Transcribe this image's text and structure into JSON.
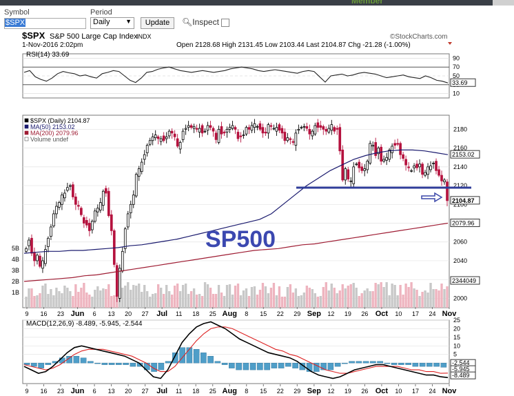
{
  "header": {
    "member_text": "Member",
    "symbol_label": "Symbol",
    "symbol_value": "$SPX",
    "period_label": "Period",
    "period_value": "Daily",
    "update_label": "Update",
    "inspect_label": "Inspect"
  },
  "chart_info": {
    "ticker": "$SPX",
    "name": "S&P 500 Large Cap Index",
    "exchange": "INDX",
    "datetime": "1-Nov-2016 2:02pm",
    "source": "©StockCharts.com",
    "ohlc_text": "Open 2128.68  High 2131.45  Low 2103.44  Last 2104.87  Chg -21.28 (-1.00%)",
    "annotation": "SP500"
  },
  "chart_data": [
    {
      "type": "line",
      "title": "RSI(14) 33.69",
      "ylim": [
        0,
        100
      ],
      "ticks": [
        90,
        70,
        50,
        30,
        10
      ],
      "last_value_label": "33.69",
      "values": [
        58,
        62,
        48,
        42,
        38,
        45,
        55,
        60,
        57,
        55,
        50,
        52,
        48,
        45,
        55,
        58,
        62,
        60,
        50,
        40,
        35,
        45,
        58,
        60,
        65,
        68,
        70,
        66,
        62,
        60,
        58,
        60,
        62,
        60,
        58,
        60,
        62,
        66,
        68,
        70,
        68,
        66,
        62,
        60,
        62,
        64,
        62,
        60,
        58,
        56,
        60,
        62,
        60,
        48,
        36,
        50,
        52,
        54,
        50,
        52,
        56,
        58,
        56,
        54,
        50,
        46,
        48,
        50,
        52,
        48,
        46,
        44,
        50,
        46,
        40,
        38,
        34
      ]
    },
    {
      "type": "candlestick",
      "title": "$SPX (Daily) 2104.87",
      "ylim": [
        1990,
        2195
      ],
      "y_ticks": [
        2000,
        2020,
        2040,
        2060,
        2080,
        2100,
        2120,
        2140,
        2160,
        2180
      ],
      "x_tick_labels": [
        "9",
        "16",
        "23",
        "Jun",
        "6",
        "13",
        "20",
        "27",
        "Jul",
        "11",
        "18",
        "25",
        "Aug",
        "8",
        "15",
        "22",
        "29",
        "Sep",
        "12",
        "19",
        "26",
        "Oct",
        "10",
        "17",
        "24",
        "Nov"
      ],
      "volume_ticks": [
        "5B",
        "4B",
        "3B",
        "2B",
        "1B"
      ],
      "legend": [
        "$SPX (Daily) 2104.87",
        "MA(50) 2153.02",
        "MA(200) 2079.96",
        "Volume undef"
      ],
      "value_labels": {
        "ma50": "2153.02",
        "last": "2104.87",
        "ma200": "2079.96",
        "volume": "2344049"
      },
      "closes": [
        2053,
        2062,
        2048,
        2040,
        2046,
        2034,
        2040,
        2052,
        2064,
        2076,
        2090,
        2098,
        2102,
        2110,
        2112,
        2118,
        2120,
        2108,
        2100,
        2098,
        2089,
        2080,
        2078,
        2072,
        2082,
        2093,
        2096,
        2102,
        2114,
        2112,
        2088,
        2072,
        2036,
        2002,
        2032,
        2050,
        2074,
        2090,
        2100,
        2110,
        2132,
        2138,
        2145,
        2153,
        2163,
        2168,
        2172,
        2174,
        2170,
        2170,
        2168,
        2172,
        2178,
        2176,
        2172,
        2162,
        2166,
        2178,
        2181,
        2184,
        2182,
        2183,
        2180,
        2181,
        2176,
        2178,
        2184,
        2182,
        2178,
        2169,
        2180,
        2175,
        2176,
        2180,
        2182,
        2184,
        2180,
        2170,
        2172,
        2174,
        2182,
        2180,
        2184,
        2186,
        2183,
        2180,
        2176,
        2176,
        2185,
        2183,
        2181,
        2182,
        2179,
        2176,
        2168,
        2171,
        2169,
        2166,
        2176,
        2180,
        2182,
        2183,
        2181,
        2175,
        2178,
        2184,
        2182,
        2182,
        2180,
        2178,
        2181,
        2185,
        2178,
        2180,
        2157,
        2126,
        2138,
        2127,
        2125,
        2140,
        2143,
        2139,
        2136,
        2138,
        2146,
        2165,
        2163,
        2152,
        2160,
        2146,
        2148,
        2150,
        2158,
        2162,
        2163,
        2164,
        2153,
        2149,
        2142,
        2139,
        2136,
        2141,
        2139,
        2143,
        2132,
        2134,
        2140,
        2141,
        2144,
        2136,
        2131,
        2125,
        2126,
        2104
      ],
      "ma50": [
        2048,
        2049,
        2050,
        2050,
        2051,
        2051,
        2052,
        2053,
        2054,
        2056,
        2057,
        2059,
        2061,
        2063,
        2066,
        2069,
        2072,
        2075,
        2078,
        2081,
        2084,
        2090,
        2100,
        2110,
        2120,
        2128,
        2136,
        2142,
        2148,
        2152,
        2155,
        2157,
        2158,
        2158,
        2157,
        2155,
        2153
      ],
      "ma200": [
        2018,
        2019,
        2020,
        2021,
        2022,
        2024,
        2025,
        2027,
        2029,
        2031,
        2033,
        2035,
        2037,
        2039,
        2041,
        2043,
        2045,
        2047,
        2049,
        2051,
        2052,
        2053,
        2055,
        2057,
        2058,
        2060,
        2062,
        2064,
        2066,
        2068,
        2070,
        2072,
        2074,
        2076,
        2078,
        2080
      ]
    },
    {
      "type": "line",
      "title": "MACD(12,26,9) -8.489, -5.945, -2.544",
      "ylim": [
        -12,
        25
      ],
      "ticks": [
        25,
        20,
        15,
        10,
        5,
        0
      ],
      "value_labels": [
        "-2.544",
        "-5.945",
        "-8.489"
      ],
      "macd": [
        -2,
        -4,
        -6,
        -5,
        -2,
        2,
        6,
        9,
        10,
        9,
        8,
        7,
        6,
        5,
        4,
        2,
        0,
        -4,
        -8,
        -9,
        -4,
        4,
        12,
        17,
        21,
        23,
        24,
        22,
        20,
        17,
        14,
        12,
        10,
        8,
        6,
        5,
        4,
        3,
        1,
        -2,
        -5,
        -7,
        -8,
        -9,
        -8,
        -6,
        -4,
        -3,
        -2,
        -1,
        -1,
        -2,
        -3,
        -4,
        -5,
        -6,
        -7,
        -7,
        -8,
        -8.5
      ],
      "signal": [
        -1,
        -2,
        -3,
        -4,
        -3,
        -1,
        2,
        5,
        7,
        8,
        8,
        8,
        7,
        6,
        5,
        4,
        2,
        0,
        -3,
        -5,
        -5,
        -2,
        3,
        8,
        13,
        17,
        20,
        21,
        21,
        20,
        18,
        16,
        14,
        12,
        10,
        8,
        7,
        5,
        4,
        2,
        0,
        -2,
        -4,
        -5,
        -6,
        -6,
        -5,
        -4,
        -3,
        -2,
        -2,
        -2,
        -2,
        -3,
        -4,
        -4,
        -5,
        -5,
        -6,
        -5.9
      ],
      "histogram": [
        -1,
        -2,
        -3,
        -1,
        1,
        3,
        4,
        4,
        3,
        1,
        0,
        -1,
        -1,
        -1,
        -1,
        -2,
        -2,
        -4,
        -5,
        -4,
        1,
        6,
        9,
        9,
        8,
        6,
        4,
        1,
        -1,
        -3,
        -4,
        -4,
        -4,
        -4,
        -4,
        -3,
        -3,
        -2,
        -3,
        -4,
        -5,
        -5,
        -4,
        -4,
        -2,
        0,
        1,
        1,
        1,
        1,
        1,
        0,
        -1,
        -1,
        -1,
        -2,
        -2,
        -2,
        -2,
        -2.5
      ]
    }
  ]
}
